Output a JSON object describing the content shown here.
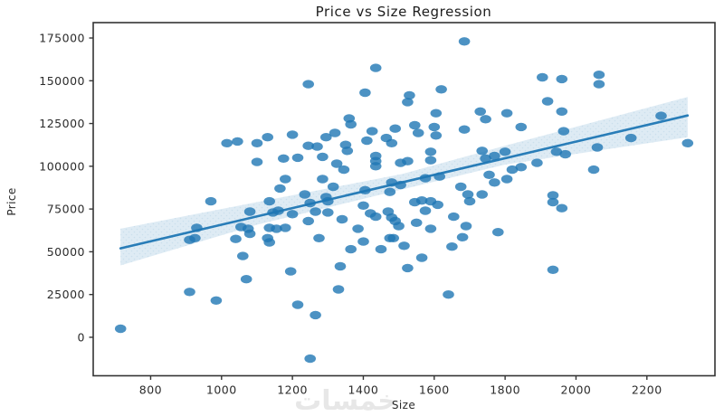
{
  "figure": {
    "background": "#ffffff"
  },
  "watermark": {
    "text": "خمسات",
    "color": "#e7e7e7"
  },
  "style": {
    "point_color": "#1f77b4",
    "point_opacity": 0.8,
    "line_color": "#1f77b4",
    "band_color": "#1f77b4",
    "band_opacity": 0.15,
    "spine_color": "#343434",
    "text_color": "#262626"
  },
  "chart_data": {
    "type": "scatter",
    "title": "Price vs Size Regression",
    "xlabel": "Size",
    "ylabel": "Price",
    "xlim": [
      638,
      2392
    ],
    "ylim": [
      -22500,
      184000
    ],
    "xticks": [
      800,
      1000,
      1200,
      1400,
      1600,
      1800,
      2000,
      2200
    ],
    "yticks": [
      0,
      25000,
      50000,
      75000,
      100000,
      125000,
      150000,
      175000
    ],
    "grid": false,
    "legend": null,
    "points": [
      [
        1015,
        113500
      ],
      [
        1045,
        114500
      ],
      [
        1100,
        113500
      ],
      [
        1130,
        117000
      ],
      [
        1200,
        118500
      ],
      [
        1100,
        102500
      ],
      [
        1175,
        104500
      ],
      [
        1215,
        105000
      ],
      [
        1180,
        92500
      ],
      [
        1165,
        87000
      ],
      [
        1685,
        173000
      ],
      [
        1435,
        157500
      ],
      [
        1245,
        148000
      ],
      [
        1620,
        145000
      ],
      [
        1405,
        143000
      ],
      [
        1530,
        141500
      ],
      [
        1525,
        137500
      ],
      [
        1360,
        128000
      ],
      [
        1365,
        124500
      ],
      [
        1605,
        131000
      ],
      [
        1730,
        132000
      ],
      [
        1745,
        127500
      ],
      [
        1805,
        131000
      ],
      [
        1425,
        120500
      ],
      [
        1490,
        122000
      ],
      [
        1545,
        124000
      ],
      [
        1555,
        119500
      ],
      [
        1295,
        117000
      ],
      [
        1320,
        119500
      ],
      [
        1245,
        112000
      ],
      [
        1270,
        111500
      ],
      [
        1350,
        112500
      ],
      [
        1355,
        109000
      ],
      [
        1410,
        115000
      ],
      [
        1465,
        116500
      ],
      [
        1480,
        113500
      ],
      [
        1600,
        123000
      ],
      [
        1605,
        118000
      ],
      [
        1685,
        121500
      ],
      [
        1590,
        108500
      ],
      [
        1590,
        103500
      ],
      [
        1285,
        105500
      ],
      [
        1325,
        101500
      ],
      [
        1345,
        98000
      ],
      [
        1435,
        106000
      ],
      [
        1435,
        103000
      ],
      [
        1435,
        100000
      ],
      [
        1505,
        102000
      ],
      [
        1525,
        103000
      ],
      [
        1575,
        93000
      ],
      [
        1615,
        94000
      ],
      [
        1480,
        90500
      ],
      [
        1505,
        89000
      ],
      [
        1735,
        109000
      ],
      [
        1745,
        104500
      ],
      [
        1770,
        106000
      ],
      [
        1800,
        108500
      ],
      [
        1755,
        95000
      ],
      [
        1770,
        90500
      ],
      [
        1805,
        92500
      ],
      [
        1285,
        92500
      ],
      [
        1315,
        88000
      ],
      [
        1405,
        86000
      ],
      [
        1475,
        85000
      ],
      [
        1675,
        88000
      ],
      [
        1695,
        83500
      ],
      [
        1735,
        83500
      ],
      [
        1235,
        83500
      ],
      [
        1295,
        82000
      ],
      [
        1905,
        152000
      ],
      [
        1960,
        151000
      ],
      [
        2065,
        153500
      ],
      [
        2065,
        148000
      ],
      [
        1920,
        138000
      ],
      [
        1960,
        132000
      ],
      [
        1965,
        120500
      ],
      [
        1845,
        123000
      ],
      [
        2240,
        129500
      ],
      [
        2155,
        116500
      ],
      [
        2060,
        111000
      ],
      [
        2315,
        113500
      ],
      [
        1945,
        108500
      ],
      [
        1970,
        107000
      ],
      [
        1845,
        99500
      ],
      [
        1890,
        102000
      ],
      [
        1820,
        98000
      ],
      [
        2050,
        98000
      ],
      [
        1935,
        83000
      ],
      [
        970,
        79500
      ],
      [
        1135,
        79500
      ],
      [
        1080,
        73500
      ],
      [
        1145,
        73000
      ],
      [
        1160,
        74000
      ],
      [
        1200,
        72000
      ],
      [
        930,
        64000
      ],
      [
        910,
        57000
      ],
      [
        925,
        58000
      ],
      [
        1055,
        64500
      ],
      [
        1075,
        63500
      ],
      [
        1080,
        60500
      ],
      [
        1135,
        64000
      ],
      [
        1155,
        63500
      ],
      [
        1180,
        64000
      ],
      [
        1040,
        57500
      ],
      [
        1130,
        58000
      ],
      [
        1135,
        55500
      ],
      [
        1060,
        47500
      ],
      [
        1195,
        38500
      ],
      [
        1070,
        34000
      ],
      [
        910,
        26500
      ],
      [
        985,
        21500
      ],
      [
        1215,
        19000
      ],
      [
        715,
        5000
      ],
      [
        1250,
        78500
      ],
      [
        1300,
        79500
      ],
      [
        1265,
        73500
      ],
      [
        1300,
        73000
      ],
      [
        1245,
        68000
      ],
      [
        1340,
        69000
      ],
      [
        1400,
        77000
      ],
      [
        1420,
        72500
      ],
      [
        1435,
        70500
      ],
      [
        1470,
        73500
      ],
      [
        1480,
        70000
      ],
      [
        1490,
        68000
      ],
      [
        1500,
        65000
      ],
      [
        1545,
        79000
      ],
      [
        1565,
        80000
      ],
      [
        1590,
        79500
      ],
      [
        1610,
        77500
      ],
      [
        1575,
        74000
      ],
      [
        1590,
        63500
      ],
      [
        1550,
        67000
      ],
      [
        1700,
        79500
      ],
      [
        1655,
        70500
      ],
      [
        1690,
        65000
      ],
      [
        1275,
        58000
      ],
      [
        1385,
        63500
      ],
      [
        1365,
        51500
      ],
      [
        1400,
        56000
      ],
      [
        1450,
        51500
      ],
      [
        1475,
        58000
      ],
      [
        1485,
        58000
      ],
      [
        1515,
        53500
      ],
      [
        1565,
        46500
      ],
      [
        1525,
        40500
      ],
      [
        1335,
        41500
      ],
      [
        1330,
        28000
      ],
      [
        1265,
        13000
      ],
      [
        1640,
        25000
      ],
      [
        1650,
        53000
      ],
      [
        1680,
        58500
      ],
      [
        1780,
        61500
      ],
      [
        1250,
        -12500
      ],
      [
        1935,
        79000
      ],
      [
        1960,
        75500
      ],
      [
        1935,
        39500
      ]
    ],
    "regression_line": {
      "x": [
        715,
        2315
      ],
      "y": [
        52000,
        129700
      ]
    },
    "confidence_band": {
      "x": [
        715,
        1100,
        1510,
        1800,
        2315
      ],
      "upper": [
        63500,
        79000,
        95500,
        112000,
        140500
      ],
      "lower": [
        42000,
        65800,
        86500,
        101000,
        117000
      ]
    }
  }
}
